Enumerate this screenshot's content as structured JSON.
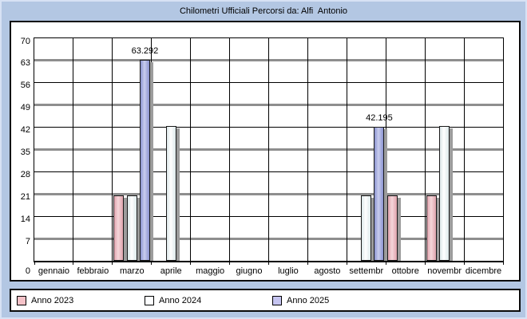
{
  "title": "Chilometri Ufficiali Percorsi da: Alfi  Antonio",
  "chart_data": {
    "type": "bar",
    "title": "Chilometri Ufficiali Percorsi da: Alfi  Antonio",
    "categories": [
      "gennaio",
      "febbraio",
      "marzo",
      "aprile",
      "maggio",
      "giugno",
      "luglio",
      "agosto",
      "settembr",
      "ottobre",
      "novembr",
      "dicembre"
    ],
    "series": [
      {
        "name": "Anno 2023",
        "bar_dark": "#dfa3ad",
        "bar_light": "#f5d6da",
        "swatch": "#f5c2c8",
        "values": [
          0,
          0,
          20.7,
          0,
          0,
          0,
          0,
          0,
          0,
          20.7,
          20.7,
          0
        ]
      },
      {
        "name": "Anno 2024",
        "bar_dark": "#dce8ea",
        "bar_light": "#ffffff",
        "swatch": "#fdfeff",
        "values": [
          0,
          0,
          20.7,
          42.5,
          0,
          0,
          0,
          0,
          20.7,
          0,
          42.5,
          0
        ]
      },
      {
        "name": "Anno 2025",
        "bar_dark": "#8a92cf",
        "bar_light": "#c9cdee",
        "swatch": "#c5c4f0",
        "values": [
          0,
          0,
          63.292,
          0,
          0,
          0,
          0,
          0,
          42.195,
          0,
          0,
          0
        ]
      }
    ],
    "point_labels": [
      {
        "series": 2,
        "category": 2,
        "text": "63.292"
      },
      {
        "series": 2,
        "category": 8,
        "text": "42.195"
      }
    ],
    "ylim": [
      0,
      70
    ],
    "ytick_step": 7,
    "grid": true,
    "legend_position": "bottom",
    "colors": {
      "background": "#b3c7e3",
      "outer_border": "#d7e2f4",
      "grid_major": "#8e8e8e",
      "grid_minor": "#000000",
      "shadow": "#9c9c9c"
    }
  }
}
